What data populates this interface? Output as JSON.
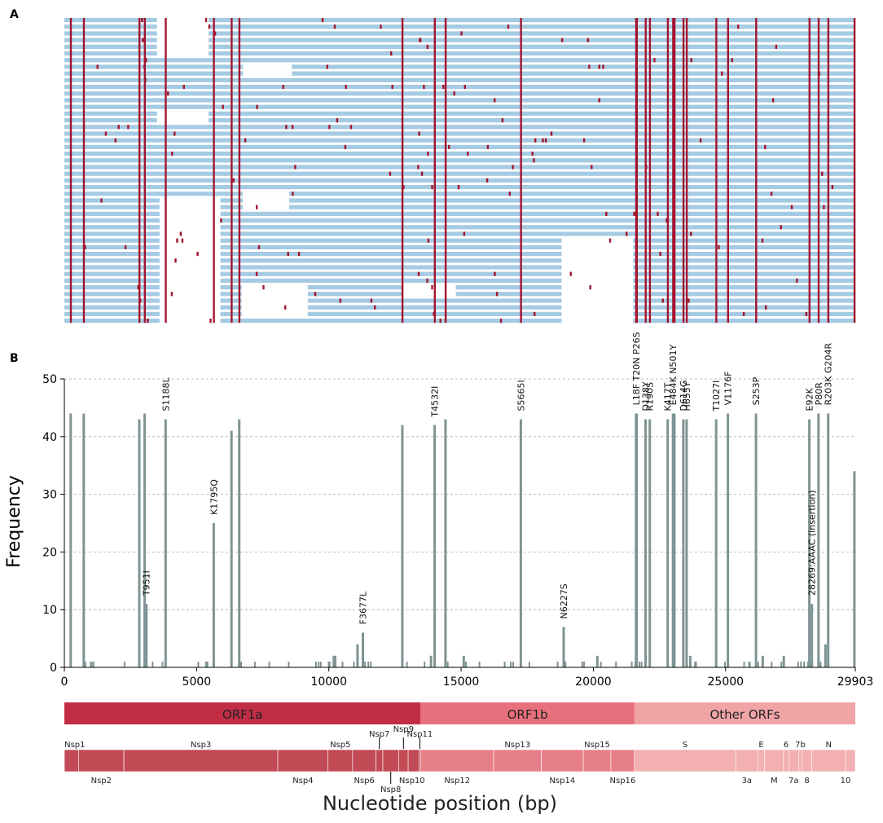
{
  "panel_labels": {
    "a": "A",
    "b": "B"
  },
  "colors": {
    "alignment_bg": "#a5cbe3",
    "mutation": "#a3142e",
    "bar": "#7f9494",
    "orf1a": "#c22d46",
    "orf1b": "#e8707c",
    "other_orfs": "#f1a4a6",
    "nsp_dark": "#c24a54",
    "nsp_mid": "#e77f89",
    "nsp_light": "#f2b0b2"
  },
  "chart_data": {
    "type": "bar",
    "title": "",
    "xlabel": "Nucleotide position (bp)",
    "ylabel": "Frequency",
    "xlim": [
      0,
      29903
    ],
    "ylim": [
      0,
      50
    ],
    "x_ticks": [
      "0",
      "5000",
      "10000",
      "15000",
      "20000",
      "25000",
      "29903"
    ],
    "y_ticks": [
      "0",
      "10",
      "20",
      "30",
      "40",
      "50"
    ],
    "grid": true,
    "bars": [
      {
        "x": 240,
        "y": 44
      },
      {
        "x": 733,
        "y": 44
      },
      {
        "x": 2832,
        "y": 43
      },
      {
        "x": 3037,
        "y": 44
      },
      {
        "x": 3100,
        "y": 11
      },
      {
        "x": 3828,
        "y": 43
      },
      {
        "x": 5648,
        "y": 25
      },
      {
        "x": 6319,
        "y": 41
      },
      {
        "x": 6613,
        "y": 43
      },
      {
        "x": 10188,
        "y": 2
      },
      {
        "x": 10240,
        "y": 2
      },
      {
        "x": 11083,
        "y": 4
      },
      {
        "x": 11288,
        "y": 6
      },
      {
        "x": 12778,
        "y": 42
      },
      {
        "x": 13860,
        "y": 2
      },
      {
        "x": 14000,
        "y": 42
      },
      {
        "x": 14408,
        "y": 43
      },
      {
        "x": 15100,
        "y": 2
      },
      {
        "x": 17259,
        "y": 43
      },
      {
        "x": 18877,
        "y": 7
      },
      {
        "x": 20150,
        "y": 2
      },
      {
        "x": 21614,
        "y": 44
      },
      {
        "x": 21638,
        "y": 44
      },
      {
        "x": 21974,
        "y": 43
      },
      {
        "x": 22132,
        "y": 43
      },
      {
        "x": 22812,
        "y": 43
      },
      {
        "x": 23012,
        "y": 44
      },
      {
        "x": 23063,
        "y": 44
      },
      {
        "x": 23403,
        "y": 43
      },
      {
        "x": 23525,
        "y": 43
      },
      {
        "x": 23664,
        "y": 2
      },
      {
        "x": 24642,
        "y": 43
      },
      {
        "x": 25088,
        "y": 44
      },
      {
        "x": 25904,
        "y": 1
      },
      {
        "x": 26149,
        "y": 44
      },
      {
        "x": 26400,
        "y": 2
      },
      {
        "x": 27200,
        "y": 2
      },
      {
        "x": 28167,
        "y": 43
      },
      {
        "x": 28262,
        "y": 11
      },
      {
        "x": 28512,
        "y": 44
      },
      {
        "x": 28777,
        "y": 4
      },
      {
        "x": 28878,
        "y": 44
      },
      {
        "x": 29870,
        "y": 34
      }
    ],
    "annotations": [
      {
        "x": 3828,
        "y": 44,
        "text": "S1188L"
      },
      {
        "x": 3100,
        "y": 12,
        "text": "T951I"
      },
      {
        "x": 5648,
        "y": 26,
        "text": "K1795Q"
      },
      {
        "x": 11288,
        "y": 7,
        "text": "F3677L"
      },
      {
        "x": 14000,
        "y": 43,
        "text": "T4532I"
      },
      {
        "x": 17259,
        "y": 44,
        "text": "S5665I"
      },
      {
        "x": 18877,
        "y": 8,
        "text": "N6227S"
      },
      {
        "x": 21614,
        "y": 45,
        "text": "L18F T20N P26S"
      },
      {
        "x": 21974,
        "y": 44,
        "text": "D138Y"
      },
      {
        "x": 22132,
        "y": 44,
        "text": "R190S"
      },
      {
        "x": 22812,
        "y": 44,
        "text": "K417T"
      },
      {
        "x": 23012,
        "y": 45,
        "text": "E484K N501Y"
      },
      {
        "x": 23403,
        "y": 44,
        "text": "D614G"
      },
      {
        "x": 23525,
        "y": 44,
        "text": "H655Y"
      },
      {
        "x": 24642,
        "y": 44,
        "text": "T1027I"
      },
      {
        "x": 25088,
        "y": 45,
        "text": "V1176F"
      },
      {
        "x": 26149,
        "y": 45,
        "text": "S253P"
      },
      {
        "x": 28167,
        "y": 44,
        "text": "E92K"
      },
      {
        "x": 28262,
        "y": 12,
        "text": "28269:AAAC (insertion)"
      },
      {
        "x": 28512,
        "y": 45,
        "text": "P80R"
      },
      {
        "x": 28878,
        "y": 45,
        "text": "R203K G204R"
      }
    ],
    "mutation_sites": [
      240,
      733,
      2832,
      3037,
      3828,
      5648,
      6319,
      6613,
      12778,
      14000,
      14408,
      17259,
      21614,
      21638,
      21974,
      22132,
      22812,
      23012,
      23063,
      23403,
      23525,
      24642,
      25088,
      26149,
      28167,
      28512,
      28878,
      29870
    ],
    "genome_regions": [
      {
        "label": "ORF1a",
        "start": 0,
        "end": 13468
      },
      {
        "label": "ORF1b",
        "start": 13468,
        "end": 21555
      },
      {
        "label": "Other ORFs",
        "start": 21555,
        "end": 29903
      }
    ],
    "genes": [
      {
        "label": "Nsp1",
        "start": 0,
        "end": 540,
        "row": "top"
      },
      {
        "label": "Nsp2",
        "start": 540,
        "end": 2250,
        "row": "bottom"
      },
      {
        "label": "Nsp3",
        "start": 2250,
        "end": 8070,
        "row": "top"
      },
      {
        "label": "Nsp4",
        "start": 8070,
        "end": 9970,
        "row": "bottom"
      },
      {
        "label": "Nsp5",
        "start": 9970,
        "end": 10900,
        "row": "top"
      },
      {
        "label": "Nsp6",
        "start": 10900,
        "end": 11780,
        "row": "bottom"
      },
      {
        "label": "Nsp7",
        "start": 11780,
        "end": 12040,
        "row": "top"
      },
      {
        "label": "Nsp8",
        "start": 12040,
        "end": 12640,
        "row": "bottom"
      },
      {
        "label": "Nsp9",
        "start": 12640,
        "end": 13000,
        "row": "top"
      },
      {
        "label": "Nsp10",
        "start": 13000,
        "end": 13410,
        "row": "bottom"
      },
      {
        "label": "Nsp11",
        "start": 13410,
        "end": 13468,
        "row": "top"
      },
      {
        "label": "Nsp12",
        "start": 13468,
        "end": 16230,
        "row": "bottom"
      },
      {
        "label": "Nsp13",
        "start": 16230,
        "end": 18030,
        "row": "top"
      },
      {
        "label": "Nsp14",
        "start": 18030,
        "end": 19620,
        "row": "bottom"
      },
      {
        "label": "Nsp15",
        "start": 19620,
        "end": 20660,
        "row": "top"
      },
      {
        "label": "Nsp16",
        "start": 20660,
        "end": 21555,
        "row": "bottom"
      },
      {
        "label": "S",
        "start": 21555,
        "end": 25384,
        "row": "top"
      },
      {
        "label": "3a",
        "start": 25384,
        "end": 26220,
        "row": "bottom"
      },
      {
        "label": "E",
        "start": 26220,
        "end": 26472,
        "row": "top"
      },
      {
        "label": "M",
        "start": 26472,
        "end": 27191,
        "row": "bottom"
      },
      {
        "label": "6",
        "start": 27191,
        "end": 27387,
        "row": "top"
      },
      {
        "label": "7a",
        "start": 27387,
        "end": 27759,
        "row": "bottom"
      },
      {
        "label": "7b",
        "start": 27759,
        "end": 27887,
        "row": "top"
      },
      {
        "label": "8",
        "start": 27887,
        "end": 28259,
        "row": "bottom"
      },
      {
        "label": "N",
        "start": 28259,
        "end": 29533,
        "row": "top"
      },
      {
        "label": "10",
        "start": 29533,
        "end": 29903,
        "row": "bottom"
      }
    ]
  }
}
